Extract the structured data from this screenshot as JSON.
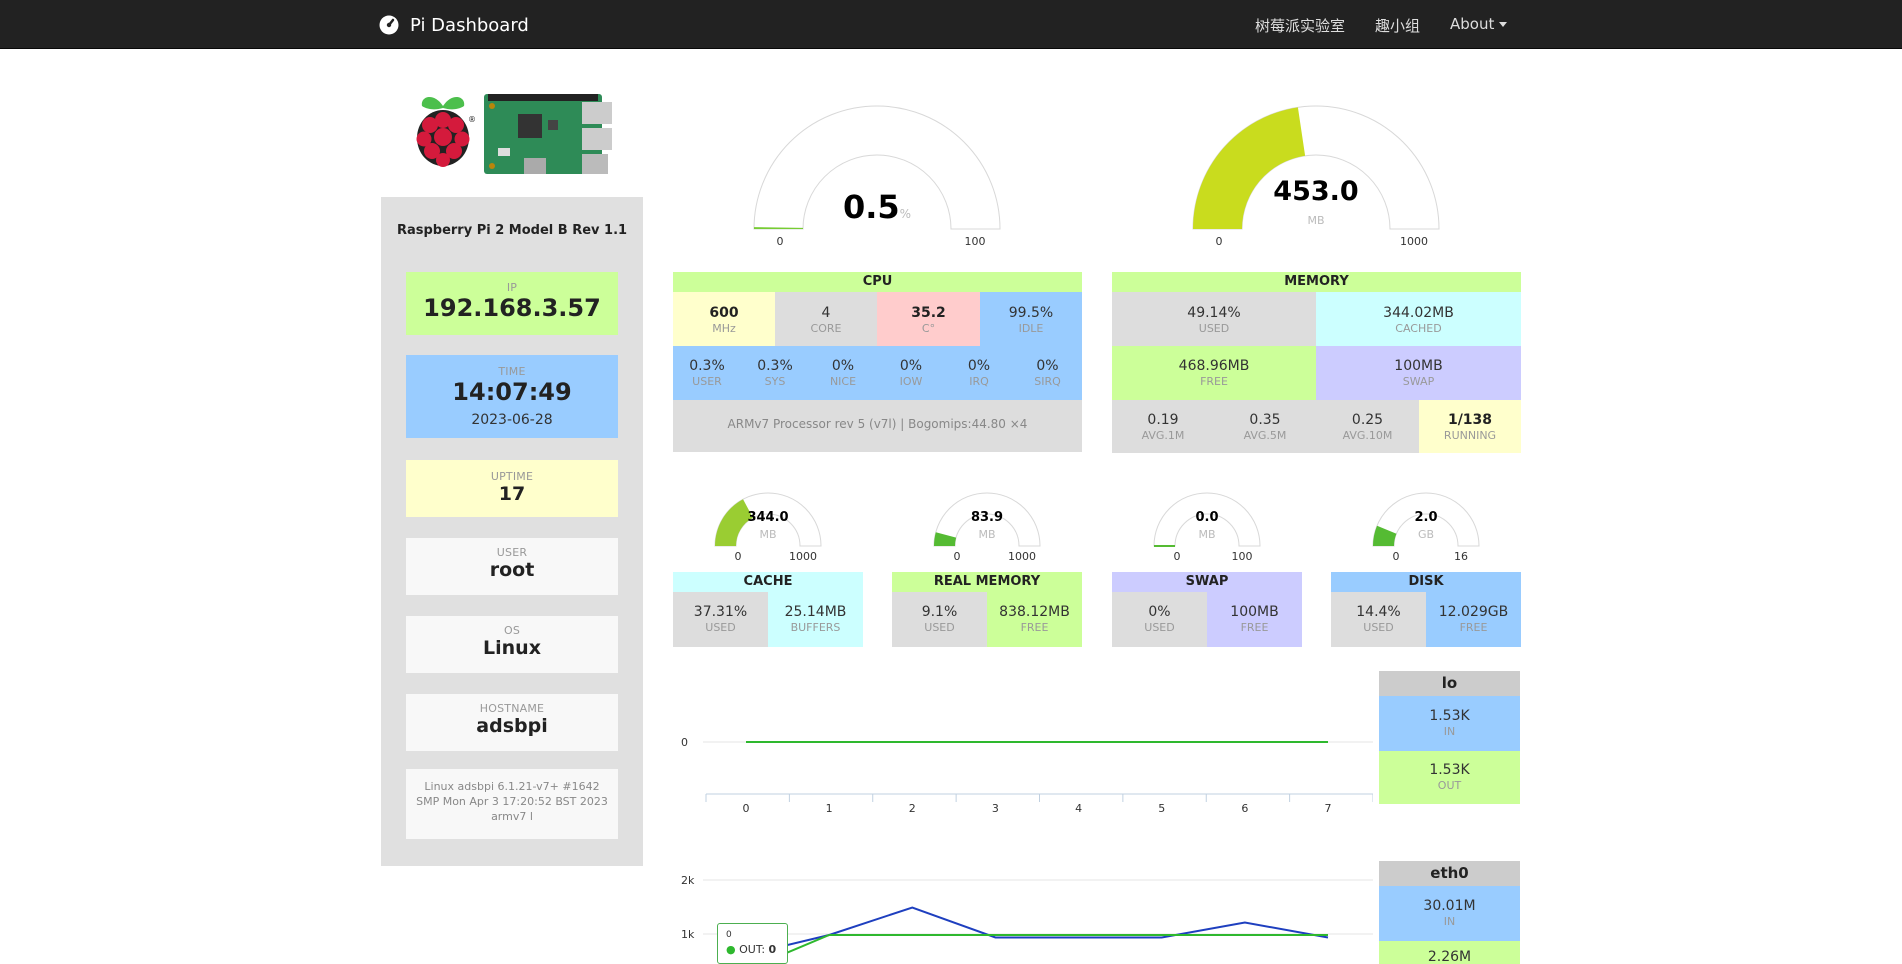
{
  "nav": {
    "brand": "Pi Dashboard",
    "links": [
      {
        "label": "树莓派实验室"
      },
      {
        "label": "趣小组"
      },
      {
        "label": "About"
      }
    ]
  },
  "device": {
    "model": "Raspberry Pi 2 Model B Rev 1.1",
    "ip_label": "IP",
    "ip": "192.168.3.57",
    "time_label": "TIME",
    "time": "14:07:49",
    "date": "2023-06-28",
    "uptime_label": "UPTIME",
    "uptime": "17",
    "user_label": "USER",
    "user": "root",
    "os_label": "OS",
    "os": "Linux",
    "hostname_label": "HOSTNAME",
    "hostname": "adsbpi",
    "kernel": "Linux adsbpi 6.1.21-v7+ #1642 SMP Mon Apr 3 17:20:52 BST 2023 armv7 l"
  },
  "cpu_gauge": {
    "value": "0.5",
    "unit": "%",
    "min": "0",
    "max": "100",
    "level": 0.005
  },
  "mem_gauge": {
    "value": "453.0",
    "unit": "MB",
    "min": "0",
    "max": "1000",
    "level": 0.453
  },
  "cpu": {
    "title": "CPU",
    "freq": "600",
    "freq_label": "MHz",
    "cores": "4",
    "cores_label": "CORE",
    "temp": "35.2",
    "temp_label": "C°",
    "idle": "99.5%",
    "idle_label": "IDLE",
    "stats": [
      {
        "value": "0.3%",
        "label": "USER"
      },
      {
        "value": "0.3%",
        "label": "SYS"
      },
      {
        "value": "0%",
        "label": "NICE"
      },
      {
        "value": "0%",
        "label": "IOW"
      },
      {
        "value": "0%",
        "label": "IRQ"
      },
      {
        "value": "0%",
        "label": "SIRQ"
      }
    ],
    "model": "ARMv7 Processor rev 5 (v7l) | Bogomips:44.80 ×4"
  },
  "memory": {
    "title": "MEMORY",
    "used": "49.14%",
    "used_label": "USED",
    "cached": "344.02MB",
    "cached_label": "CACHED",
    "free": "468.96MB",
    "free_label": "FREE",
    "swap": "100MB",
    "swap_label": "SWAP",
    "avg1": "0.19",
    "avg1_label": "AVG.1M",
    "avg5": "0.35",
    "avg5_label": "AVG.5M",
    "avg10": "0.25",
    "avg10_label": "AVG.10M",
    "running": "1/138",
    "running_label": "RUNNING"
  },
  "small_gauges": [
    {
      "value": "344.0",
      "unit": "MB",
      "min": "0",
      "max": "1000",
      "level": 0.344,
      "color": "#9acd32",
      "title": "CACHE",
      "a": "37.31%",
      "a_label": "USED",
      "b": "25.14MB",
      "b_label": "BUFFERS"
    },
    {
      "value": "83.9",
      "unit": "MB",
      "min": "0",
      "max": "1000",
      "level": 0.0839,
      "color": "#55bb33",
      "title": "REAL MEMORY",
      "a": "9.1%",
      "a_label": "USED",
      "b": "838.12MB",
      "b_label": "FREE"
    },
    {
      "value": "0.0",
      "unit": "MB",
      "min": "0",
      "max": "100",
      "level": 0.0,
      "color": "#55bb33",
      "title": "SWAP",
      "a": "0%",
      "a_label": "USED",
      "b": "100MB",
      "b_label": "FREE"
    },
    {
      "value": "2.0",
      "unit": "GB",
      "min": "0",
      "max": "16",
      "level": 0.125,
      "color": "#55bb33",
      "title": "DISK",
      "a": "14.4%",
      "a_label": "USED",
      "b": "12.029GB",
      "b_label": "FREE"
    }
  ],
  "net": {
    "lo": {
      "name": "lo",
      "in": "1.53K",
      "in_label": "IN",
      "out": "1.53K",
      "out_label": "OUT"
    },
    "eth0": {
      "name": "eth0",
      "in": "30.01M",
      "in_label": "IN",
      "out": "2.26M"
    }
  },
  "chart_data": [
    {
      "type": "line",
      "x": [
        0,
        1,
        2,
        3,
        4,
        5,
        6,
        7
      ],
      "series": [
        {
          "values": [
            0,
            0,
            0,
            0,
            0,
            0,
            0,
            0
          ],
          "color": "#2eb82e"
        }
      ],
      "yticks": [
        "0"
      ],
      "xticks": [
        "0",
        "1",
        "2",
        "3",
        "4",
        "5",
        "6",
        "7"
      ]
    },
    {
      "type": "line",
      "x": [
        0,
        1,
        2,
        3,
        4,
        5,
        6,
        7
      ],
      "series": [
        {
          "values": [
            500,
            900,
            1450,
            850,
            850,
            850,
            1150,
            850
          ],
          "color": "#1e3fbf"
        },
        {
          "values": [
            200,
            900,
            900,
            900,
            900,
            900,
            900,
            900
          ],
          "color": "#2eb82e"
        }
      ],
      "yticks": [
        "2k",
        "1k"
      ],
      "tooltip": {
        "x": "0",
        "series": "OUT",
        "value": "0"
      }
    }
  ],
  "colors": {
    "navbar": "#222222",
    "accent_green": "#ccff99",
    "accent_blue": "#99ccff"
  }
}
